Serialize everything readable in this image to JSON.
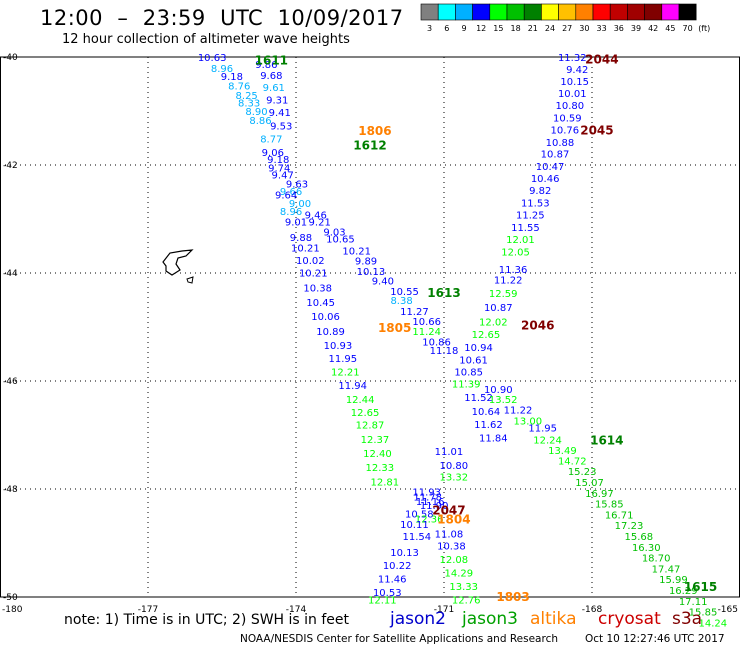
{
  "title": "12:00  –  23:59  UTC  10/09/2017",
  "subtitle": "12 hour collection of altimeter wave heights",
  "legend": {
    "unit": "(ft)",
    "items": [
      {
        "label": "3",
        "color": "#808080"
      },
      {
        "label": "6",
        "color": "#00ffff"
      },
      {
        "label": "9",
        "color": "#00b0ff"
      },
      {
        "label": "12",
        "color": "#0000ff"
      },
      {
        "label": "15",
        "color": "#00ff00"
      },
      {
        "label": "18",
        "color": "#00c000"
      },
      {
        "label": "21",
        "color": "#008000"
      },
      {
        "label": "24",
        "color": "#ffff00"
      },
      {
        "label": "27",
        "color": "#ffc000"
      },
      {
        "label": "30",
        "color": "#ff8000"
      },
      {
        "label": "33",
        "color": "#ff0000"
      },
      {
        "label": "36",
        "color": "#c00000"
      },
      {
        "label": "39",
        "color": "#a00000"
      },
      {
        "label": "42",
        "color": "#800000"
      },
      {
        "label": "45",
        "color": "#ff00ff"
      },
      {
        "label": "70",
        "color": "#000000"
      }
    ]
  },
  "axes": {
    "lon": [
      "-180",
      "-177",
      "-174",
      "-171",
      "-168",
      "-165"
    ],
    "lat": [
      "-40",
      "-42",
      "-44",
      "-46",
      "-48",
      "-50"
    ]
  },
  "chart_data": {
    "type": "scatter",
    "track_times": [
      {
        "text": "1611",
        "lon": -174.5,
        "lat": -40.05,
        "color": "#008000"
      },
      {
        "text": "1806",
        "lon": -172.4,
        "lat": -41.35,
        "color": "#ff8000"
      },
      {
        "text": "1612",
        "lon": -172.5,
        "lat": -41.62,
        "color": "#008000"
      },
      {
        "text": "1613",
        "lon": -171.0,
        "lat": -44.35,
        "color": "#008000"
      },
      {
        "text": "1805",
        "lon": -172.0,
        "lat": -45.0,
        "color": "#ff8000"
      },
      {
        "text": "1614",
        "lon": -167.7,
        "lat": -47.08,
        "color": "#008000"
      },
      {
        "text": "1615",
        "lon": -165.8,
        "lat": -49.8,
        "color": "#008000"
      },
      {
        "text": "1804",
        "lon": -170.8,
        "lat": -48.55,
        "color": "#ff8000"
      },
      {
        "text": "1803",
        "lon": -169.6,
        "lat": -49.98,
        "color": "#ff8000"
      },
      {
        "text": "2044",
        "lon": -167.8,
        "lat": -40.03,
        "color": "#800000"
      },
      {
        "text": "2045",
        "lon": -167.9,
        "lat": -41.34,
        "color": "#800000"
      },
      {
        "text": "2046",
        "lon": -169.1,
        "lat": -44.95,
        "color": "#800000"
      },
      {
        "text": "2047",
        "lon": -170.9,
        "lat": -48.38,
        "color": "#800000"
      }
    ],
    "points": [
      {
        "v": "10.63",
        "lon": -175.7,
        "lat": -40.0,
        "c": "#0000ff"
      },
      {
        "v": "9.86",
        "lon": -174.6,
        "lat": -40.13,
        "c": "#0000ff"
      },
      {
        "v": "8.96",
        "lon": -175.5,
        "lat": -40.2,
        "c": "#00b0ff"
      },
      {
        "v": "9.68",
        "lon": -174.5,
        "lat": -40.33,
        "c": "#0000ff"
      },
      {
        "v": "9.18",
        "lon": -175.3,
        "lat": -40.35,
        "c": "#0000ff"
      },
      {
        "v": "8.76",
        "lon": -175.15,
        "lat": -40.53,
        "c": "#00b0ff"
      },
      {
        "v": "9.61",
        "lon": -174.45,
        "lat": -40.56,
        "c": "#00b0ff"
      },
      {
        "v": "8.25",
        "lon": -175.0,
        "lat": -40.7,
        "c": "#00b0ff"
      },
      {
        "v": "9.31",
        "lon": -174.38,
        "lat": -40.79,
        "c": "#0000ff"
      },
      {
        "v": "8.33",
        "lon": -174.95,
        "lat": -40.84,
        "c": "#00b0ff"
      },
      {
        "v": "8.90",
        "lon": -174.8,
        "lat": -41.0,
        "c": "#00b0ff"
      },
      {
        "v": "9.41",
        "lon": -174.33,
        "lat": -41.02,
        "c": "#0000ff"
      },
      {
        "v": "8.86",
        "lon": -174.72,
        "lat": -41.17,
        "c": "#00b0ff"
      },
      {
        "v": "9.53",
        "lon": -174.3,
        "lat": -41.27,
        "c": "#0000ff"
      },
      {
        "v": "8.77",
        "lon": -174.5,
        "lat": -41.51,
        "c": "#00b0ff"
      },
      {
        "v": "9.06",
        "lon": -174.47,
        "lat": -41.76,
        "c": "#0000ff"
      },
      {
        "v": "9.18",
        "lon": -174.36,
        "lat": -41.89,
        "c": "#0000ff"
      },
      {
        "v": "9.74",
        "lon": -174.34,
        "lat": -42.05,
        "c": "#0000ff"
      },
      {
        "v": "9.47",
        "lon": -174.27,
        "lat": -42.18,
        "c": "#0000ff"
      },
      {
        "v": "9.63",
        "lon": -173.98,
        "lat": -42.34,
        "c": "#0000ff"
      },
      {
        "v": "9.66",
        "lon": -174.1,
        "lat": -42.48,
        "c": "#00b0ff"
      },
      {
        "v": "9.64",
        "lon": -174.2,
        "lat": -42.55,
        "c": "#0000ff"
      },
      {
        "v": "9.00",
        "lon": -173.92,
        "lat": -42.7,
        "c": "#00b0ff"
      },
      {
        "v": "8.96",
        "lon": -174.1,
        "lat": -42.85,
        "c": "#00b0ff"
      },
      {
        "v": "9.46",
        "lon": -173.6,
        "lat": -42.92,
        "c": "#0000ff"
      },
      {
        "v": "9.01",
        "lon": -174.0,
        "lat": -43.05,
        "c": "#0000ff"
      },
      {
        "v": "9.21",
        "lon": -173.52,
        "lat": -43.05,
        "c": "#0000ff"
      },
      {
        "v": "9.03",
        "lon": -173.22,
        "lat": -43.23,
        "c": "#0000ff"
      },
      {
        "v": "9.88",
        "lon": -173.9,
        "lat": -43.33,
        "c": "#0000ff"
      },
      {
        "v": "10.65",
        "lon": -173.1,
        "lat": -43.36,
        "c": "#0000ff"
      },
      {
        "v": "10.21",
        "lon": -173.81,
        "lat": -43.53,
        "c": "#0000ff"
      },
      {
        "v": "10.21",
        "lon": -172.77,
        "lat": -43.58,
        "c": "#0000ff"
      },
      {
        "v": "10.02",
        "lon": -173.71,
        "lat": -43.76,
        "c": "#0000ff"
      },
      {
        "v": "9.89",
        "lon": -172.58,
        "lat": -43.77,
        "c": "#0000ff"
      },
      {
        "v": "10.13",
        "lon": -172.48,
        "lat": -43.96,
        "c": "#0000ff"
      },
      {
        "v": "10.21",
        "lon": -173.65,
        "lat": -43.99,
        "c": "#0000ff"
      },
      {
        "v": "9.40",
        "lon": -172.24,
        "lat": -44.14,
        "c": "#0000ff"
      },
      {
        "v": "10.38",
        "lon": -173.56,
        "lat": -44.27,
        "c": "#0000ff"
      },
      {
        "v": "10.55",
        "lon": -171.8,
        "lat": -44.33,
        "c": "#0000ff"
      },
      {
        "v": "10.45",
        "lon": -173.5,
        "lat": -44.54,
        "c": "#0000ff"
      },
      {
        "v": "8.38",
        "lon": -171.86,
        "lat": -44.5,
        "c": "#00b0ff"
      },
      {
        "v": "11.27",
        "lon": -171.6,
        "lat": -44.7,
        "c": "#0000ff"
      },
      {
        "v": "10.06",
        "lon": -173.4,
        "lat": -44.8,
        "c": "#0000ff"
      },
      {
        "v": "10.66",
        "lon": -171.35,
        "lat": -44.89,
        "c": "#0000ff"
      },
      {
        "v": "10.89",
        "lon": -173.3,
        "lat": -45.07,
        "c": "#0000ff"
      },
      {
        "v": "11.24",
        "lon": -171.35,
        "lat": -45.07,
        "c": "#00ff00"
      },
      {
        "v": "10.86",
        "lon": -171.15,
        "lat": -45.27,
        "c": "#0000ff"
      },
      {
        "v": "10.93",
        "lon": -173.15,
        "lat": -45.33,
        "c": "#0000ff"
      },
      {
        "v": "11.18",
        "lon": -171.0,
        "lat": -45.43,
        "c": "#0000ff"
      },
      {
        "v": "11.95",
        "lon": -173.05,
        "lat": -45.57,
        "c": "#0000ff"
      },
      {
        "v": "12.21",
        "lon": -173.0,
        "lat": -45.82,
        "c": "#00ff00"
      },
      {
        "v": "11.94",
        "lon": -172.85,
        "lat": -46.07,
        "c": "#0000ff"
      },
      {
        "v": "12.44",
        "lon": -172.7,
        "lat": -46.33,
        "c": "#00ff00"
      },
      {
        "v": "11.52",
        "lon": -170.3,
        "lat": -46.3,
        "c": "#0000ff"
      },
      {
        "v": "10.64",
        "lon": -170.15,
        "lat": -46.56,
        "c": "#0000ff"
      },
      {
        "v": "12.65",
        "lon": -172.6,
        "lat": -46.57,
        "c": "#00ff00"
      },
      {
        "v": "11.62",
        "lon": -170.1,
        "lat": -46.8,
        "c": "#0000ff"
      },
      {
        "v": "12.87",
        "lon": -172.5,
        "lat": -46.81,
        "c": "#00ff00"
      },
      {
        "v": "11.84",
        "lon": -170.0,
        "lat": -47.05,
        "c": "#0000ff"
      },
      {
        "v": "12.37",
        "lon": -172.4,
        "lat": -47.07,
        "c": "#00ff00"
      },
      {
        "v": "11.01",
        "lon": -170.9,
        "lat": -47.3,
        "c": "#0000ff"
      },
      {
        "v": "12.40",
        "lon": -172.35,
        "lat": -47.33,
        "c": "#00ff00"
      },
      {
        "v": "10.80",
        "lon": -170.8,
        "lat": -47.56,
        "c": "#0000ff"
      },
      {
        "v": "12.33",
        "lon": -172.3,
        "lat": -47.59,
        "c": "#00ff00"
      },
      {
        "v": "13.32",
        "lon": -170.8,
        "lat": -47.77,
        "c": "#00ff00"
      },
      {
        "v": "12.81",
        "lon": -172.2,
        "lat": -47.86,
        "c": "#00ff00"
      },
      {
        "v": "11.93",
        "lon": -171.35,
        "lat": -48.05,
        "c": "#0000ff"
      },
      {
        "v": "11.78",
        "lon": -171.33,
        "lat": -48.14,
        "c": "#0000ff"
      },
      {
        "v": "11.16",
        "lon": -171.28,
        "lat": -48.22,
        "c": "#0000ff"
      },
      {
        "v": "11.90",
        "lon": -171.2,
        "lat": -48.3,
        "c": "#0000ff"
      },
      {
        "v": "10.58",
        "lon": -171.5,
        "lat": -48.45,
        "c": "#0000ff"
      },
      {
        "v": "12.36",
        "lon": -171.3,
        "lat": -48.55,
        "c": "#00ff00"
      },
      {
        "v": "10.11",
        "lon": -171.6,
        "lat": -48.65,
        "c": "#0000ff"
      },
      {
        "v": "11.08",
        "lon": -170.9,
        "lat": -48.82,
        "c": "#0000ff"
      },
      {
        "v": "11.54",
        "lon": -171.55,
        "lat": -48.87,
        "c": "#0000ff"
      },
      {
        "v": "10.38",
        "lon": -170.85,
        "lat": -49.05,
        "c": "#0000ff"
      },
      {
        "v": "10.13",
        "lon": -171.8,
        "lat": -49.17,
        "c": "#0000ff"
      },
      {
        "v": "12.08",
        "lon": -170.8,
        "lat": -49.3,
        "c": "#00ff00"
      },
      {
        "v": "10.22",
        "lon": -171.95,
        "lat": -49.41,
        "c": "#0000ff"
      },
      {
        "v": "14.29",
        "lon": -170.7,
        "lat": -49.55,
        "c": "#00ff00"
      },
      {
        "v": "11.46",
        "lon": -172.05,
        "lat": -49.66,
        "c": "#0000ff"
      },
      {
        "v": "13.33",
        "lon": -170.6,
        "lat": -49.8,
        "c": "#00ff00"
      },
      {
        "v": "10.53",
        "lon": -172.15,
        "lat": -49.91,
        "c": "#0000ff"
      },
      {
        "v": "12.76",
        "lon": -170.55,
        "lat": -50.05,
        "c": "#00ff00"
      },
      {
        "v": "12.11",
        "lon": -172.25,
        "lat": -50.05,
        "c": "#00ff00"
      },
      {
        "v": "11.32",
        "lon": -168.4,
        "lat": -40.0,
        "c": "#0000ff"
      },
      {
        "v": "9.42",
        "lon": -168.3,
        "lat": -40.22,
        "c": "#0000ff"
      },
      {
        "v": "10.15",
        "lon": -168.35,
        "lat": -40.44,
        "c": "#0000ff"
      },
      {
        "v": "10.01",
        "lon": -168.4,
        "lat": -40.67,
        "c": "#0000ff"
      },
      {
        "v": "10.80",
        "lon": -168.45,
        "lat": -40.89,
        "c": "#0000ff"
      },
      {
        "v": "10.59",
        "lon": -168.5,
        "lat": -41.12,
        "c": "#0000ff"
      },
      {
        "v": "10.76",
        "lon": -168.55,
        "lat": -41.34,
        "c": "#0000ff"
      },
      {
        "v": "10.88",
        "lon": -168.65,
        "lat": -41.57,
        "c": "#0000ff"
      },
      {
        "v": "10.87",
        "lon": -168.75,
        "lat": -41.79,
        "c": "#0000ff"
      },
      {
        "v": "10.47",
        "lon": -168.85,
        "lat": -42.02,
        "c": "#0000ff"
      },
      {
        "v": "10.46",
        "lon": -168.95,
        "lat": -42.24,
        "c": "#0000ff"
      },
      {
        "v": "9.82",
        "lon": -169.05,
        "lat": -42.46,
        "c": "#0000ff"
      },
      {
        "v": "11.53",
        "lon": -169.15,
        "lat": -42.69,
        "c": "#0000ff"
      },
      {
        "v": "11.25",
        "lon": -169.25,
        "lat": -42.92,
        "c": "#0000ff"
      },
      {
        "v": "11.55",
        "lon": -169.35,
        "lat": -43.15,
        "c": "#0000ff"
      },
      {
        "v": "12.01",
        "lon": -169.45,
        "lat": -43.37,
        "c": "#00ff00"
      },
      {
        "v": "12.05",
        "lon": -169.55,
        "lat": -43.6,
        "c": "#00ff00"
      },
      {
        "v": "11.36",
        "lon": -169.6,
        "lat": -43.93,
        "c": "#0000ff"
      },
      {
        "v": "11.22",
        "lon": -169.7,
        "lat": -44.12,
        "c": "#0000ff"
      },
      {
        "v": "12.59",
        "lon": -169.8,
        "lat": -44.37,
        "c": "#00ff00"
      },
      {
        "v": "10.87",
        "lon": -169.9,
        "lat": -44.63,
        "c": "#0000ff"
      },
      {
        "v": "12.02",
        "lon": -170.0,
        "lat": -44.9,
        "c": "#00ff00"
      },
      {
        "v": "12.65",
        "lon": -170.15,
        "lat": -45.13,
        "c": "#00ff00"
      },
      {
        "v": "10.94",
        "lon": -170.3,
        "lat": -45.37,
        "c": "#0000ff"
      },
      {
        "v": "10.61",
        "lon": -170.4,
        "lat": -45.6,
        "c": "#0000ff"
      },
      {
        "v": "10.85",
        "lon": -170.5,
        "lat": -45.82,
        "c": "#0000ff"
      },
      {
        "v": "11.39",
        "lon": -170.55,
        "lat": -46.05,
        "c": "#00ff00"
      },
      {
        "v": "10.90",
        "lon": -169.9,
        "lat": -46.15,
        "c": "#0000ff"
      },
      {
        "v": "13.52",
        "lon": -169.8,
        "lat": -46.33,
        "c": "#00ff00"
      },
      {
        "v": "11.22",
        "lon": -169.5,
        "lat": -46.53,
        "c": "#0000ff"
      },
      {
        "v": "13.00",
        "lon": -169.3,
        "lat": -46.73,
        "c": "#00ff00"
      },
      {
        "v": "11.95",
        "lon": -169.0,
        "lat": -46.86,
        "c": "#0000ff"
      },
      {
        "v": "12.24",
        "lon": -168.9,
        "lat": -47.08,
        "c": "#00ff00"
      },
      {
        "v": "13.49",
        "lon": -168.6,
        "lat": -47.28,
        "c": "#00ff00"
      },
      {
        "v": "14.72",
        "lon": -168.4,
        "lat": -47.47,
        "c": "#00ff00"
      },
      {
        "v": "15.23",
        "lon": -168.2,
        "lat": -47.67,
        "c": "#00c000"
      },
      {
        "v": "15.07",
        "lon": -168.05,
        "lat": -47.87,
        "c": "#00c000"
      },
      {
        "v": "16.97",
        "lon": -167.85,
        "lat": -48.07,
        "c": "#00c000"
      },
      {
        "v": "15.85",
        "lon": -167.65,
        "lat": -48.27,
        "c": "#00c000"
      },
      {
        "v": "16.71",
        "lon": -167.45,
        "lat": -48.47,
        "c": "#00c000"
      },
      {
        "v": "17.23",
        "lon": -167.25,
        "lat": -48.67,
        "c": "#00c000"
      },
      {
        "v": "15.68",
        "lon": -167.05,
        "lat": -48.87,
        "c": "#00c000"
      },
      {
        "v": "16.30",
        "lon": -166.9,
        "lat": -49.07,
        "c": "#00c000"
      },
      {
        "v": "18.70",
        "lon": -166.7,
        "lat": -49.27,
        "c": "#00c000"
      },
      {
        "v": "17.47",
        "lon": -166.5,
        "lat": -49.47,
        "c": "#00c000"
      },
      {
        "v": "15.99",
        "lon": -166.35,
        "lat": -49.67,
        "c": "#00c000"
      },
      {
        "v": "16.29",
        "lon": -166.15,
        "lat": -49.87,
        "c": "#00c000"
      },
      {
        "v": "17.11",
        "lon": -165.95,
        "lat": -50.07,
        "c": "#00c000"
      },
      {
        "v": "15.85",
        "lon": -165.75,
        "lat": -50.27,
        "c": "#00c000"
      },
      {
        "v": "14.24",
        "lon": -165.55,
        "lat": -50.47,
        "c": "#00ff00"
      }
    ]
  },
  "note": "note:  1) Time is in UTC;  2) SWH is in feet",
  "satellites": [
    {
      "name": "jason2",
      "color": "#0000cc"
    },
    {
      "name": "jason3",
      "color": "#00a000"
    },
    {
      "name": "altika",
      "color": "#ff8000"
    },
    {
      "name": "cryosat",
      "color": "#cc0000"
    },
    {
      "name": "s3a",
      "color": "#800000"
    }
  ],
  "credit": "NOAA/NESDIS Center for Satellite Applications and Research",
  "timestamp": "Oct 10 12:27:46 UTC 2017"
}
